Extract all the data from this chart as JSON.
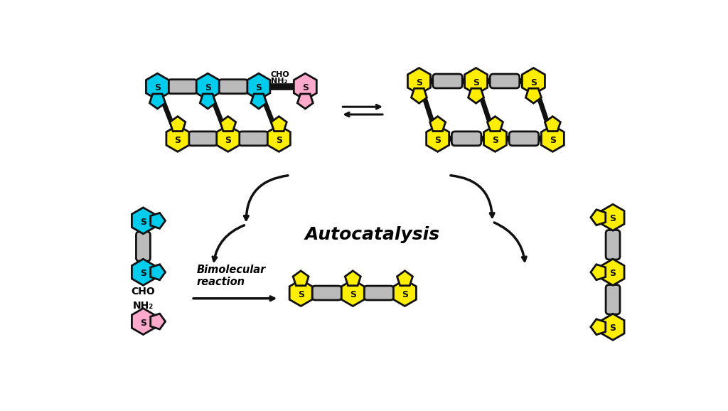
{
  "bg_color": "#ffffff",
  "cyan": "#00CCEE",
  "yellow": "#FFEE00",
  "pink": "#FFAACC",
  "gray": "#BBBBBB",
  "black": "#111111",
  "autocatalysis_text": "Autocatalysis",
  "bimolecular_text": "Bimolecular\nreaction",
  "cho_text": "CHO",
  "nh2_text": "NH₂"
}
